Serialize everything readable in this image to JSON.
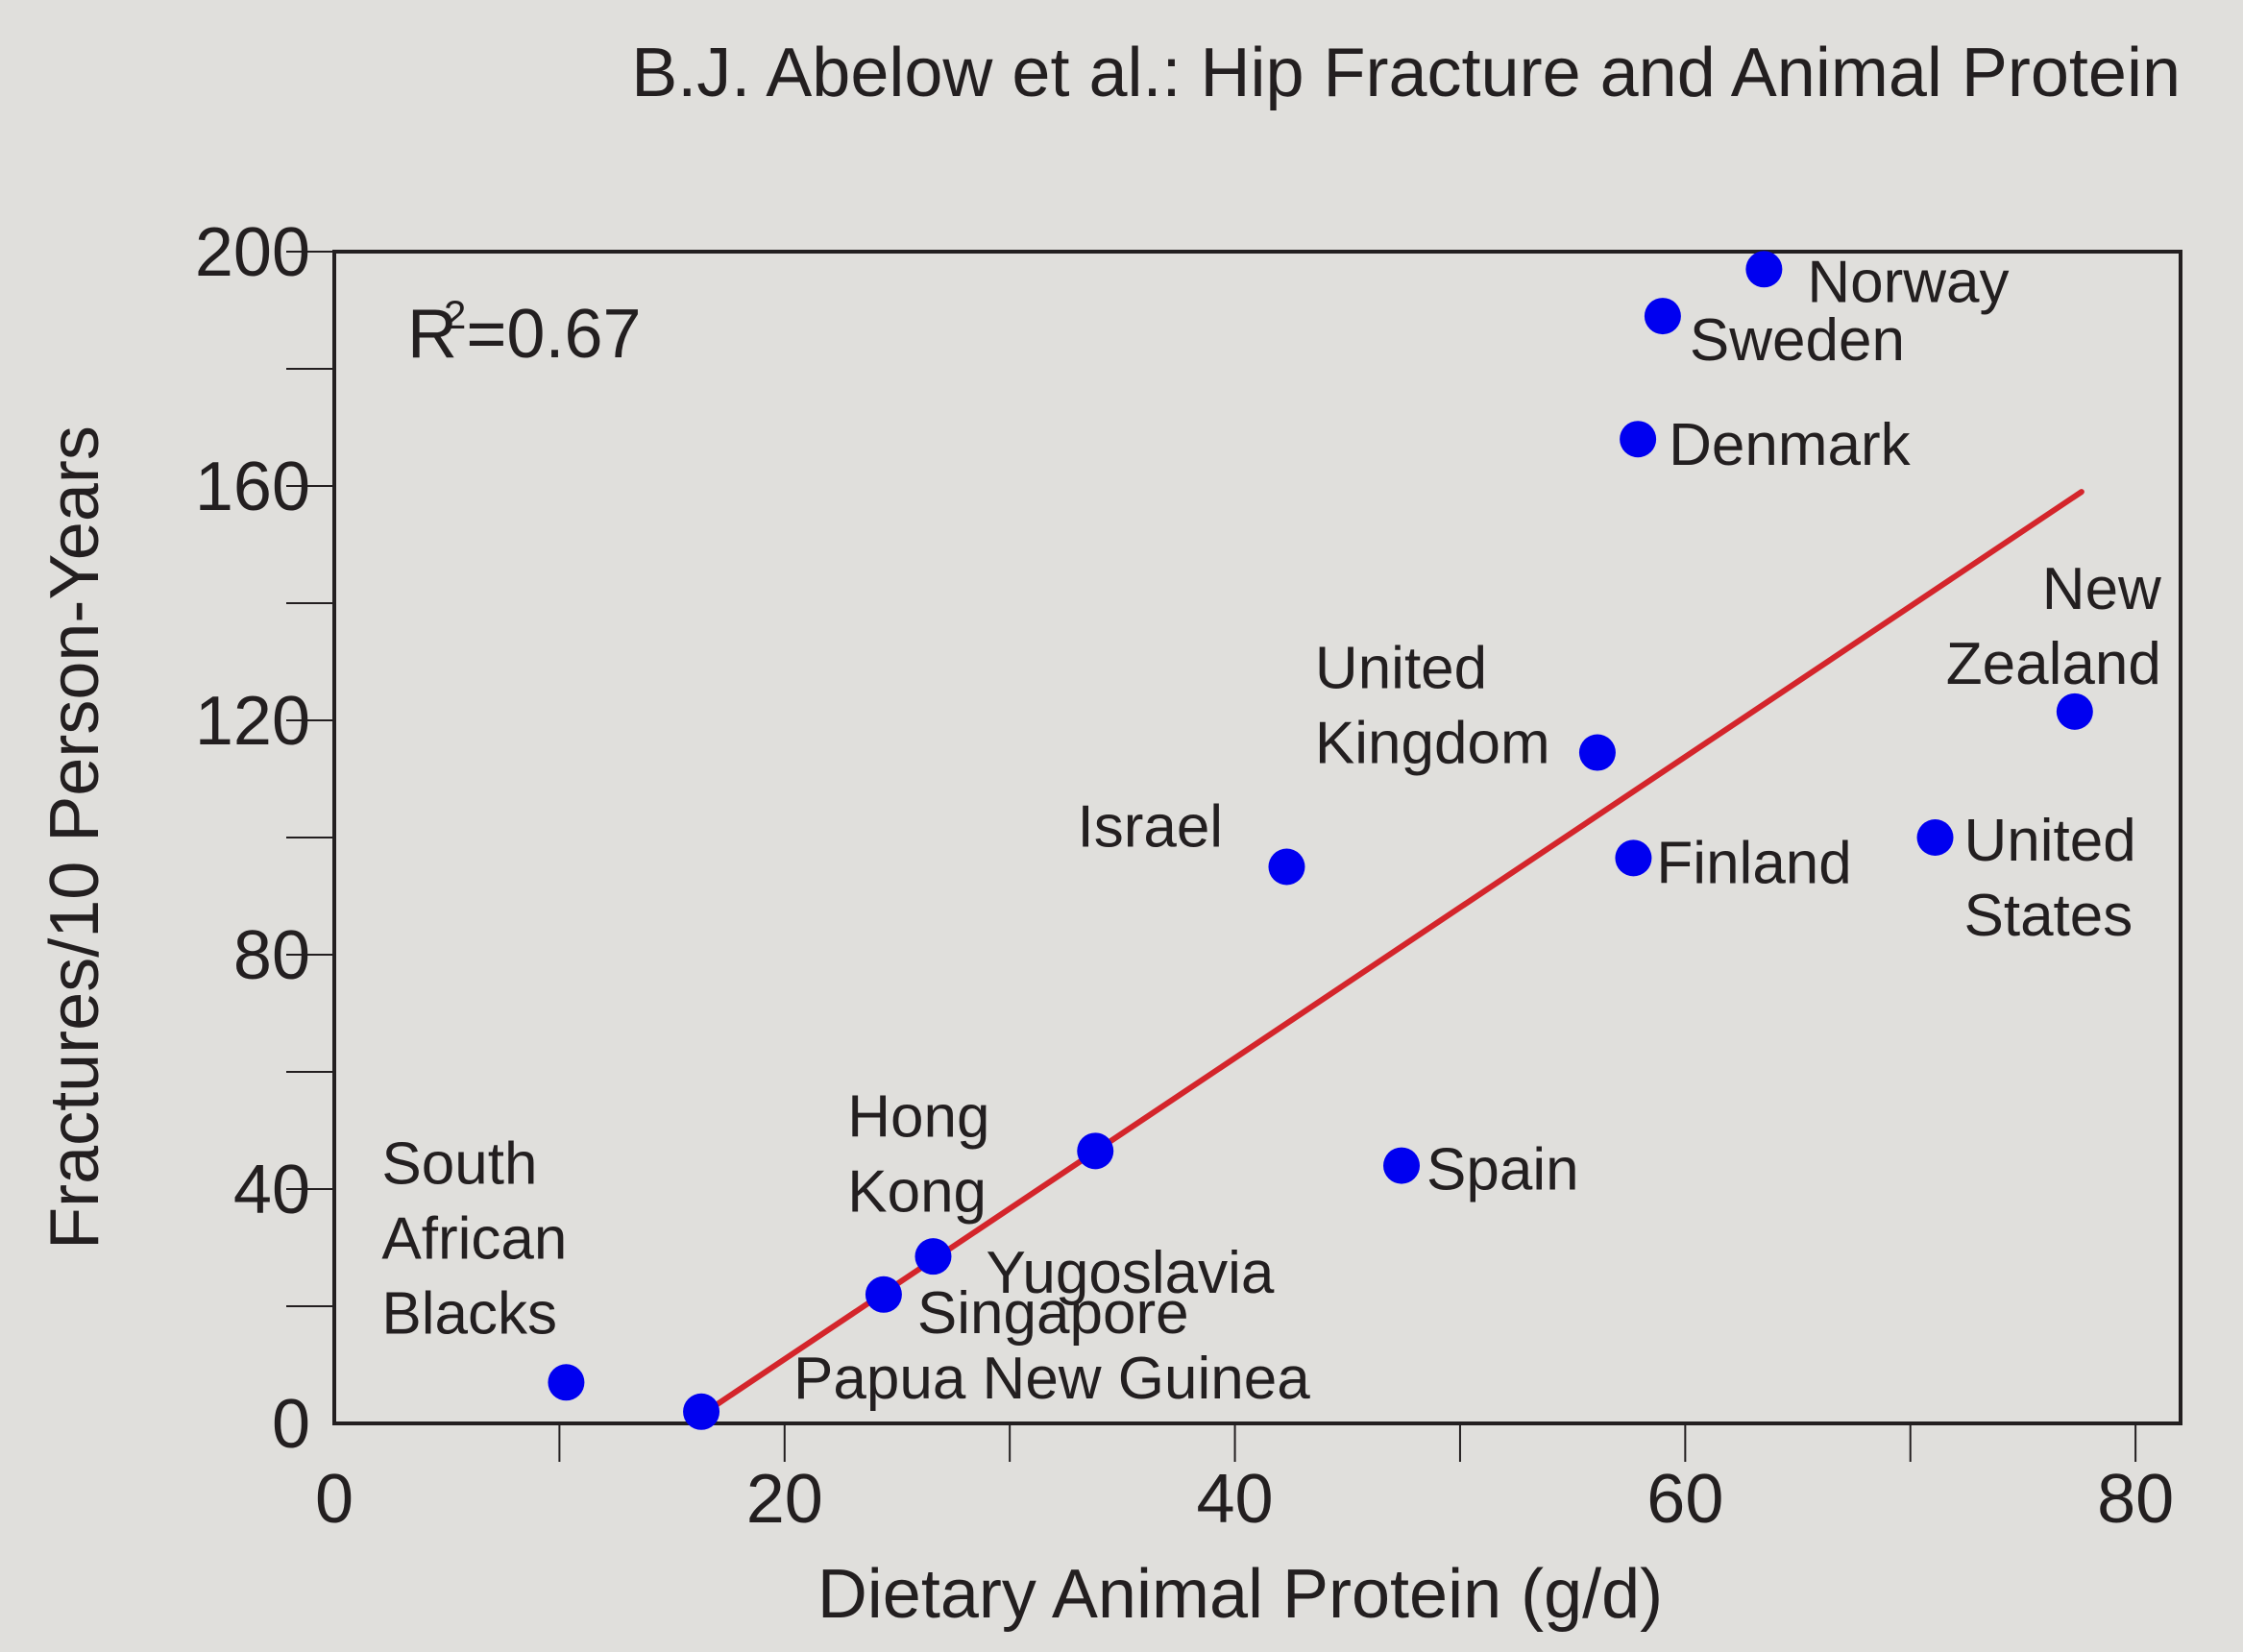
{
  "chart_data": {
    "type": "scatter",
    "title": "B.J. Abelow et al.: Hip Fracture and Animal Protein",
    "xlabel": "Dietary Animal Protein (g/d)",
    "ylabel": "Fractures/10 Person-Years",
    "xlim": [
      0,
      82
    ],
    "ylim": [
      0,
      200
    ],
    "x_ticks": [
      0,
      20,
      40,
      60,
      80
    ],
    "y_ticks": [
      0,
      40,
      80,
      120,
      160,
      200
    ],
    "x_minor_ticks": [
      10,
      30,
      50,
      70
    ],
    "y_minor_ticks": [
      20,
      60,
      100,
      140,
      180
    ],
    "grid": false,
    "annotation": {
      "r_label": "R",
      "r_exponent": "2",
      "r_value": "=0.67"
    },
    "colors": {
      "points": "#0000f0",
      "trendline": "#d4252b",
      "axis": "#231f20",
      "background": "#e0dfdc"
    },
    "points": [
      {
        "label": [
          "South",
          "African",
          "Blacks"
        ],
        "x": 10.3,
        "y": 7
      },
      {
        "label": [
          "Papua New Guinea"
        ],
        "x": 16.3,
        "y": 2
      },
      {
        "label": [
          "Singapore"
        ],
        "x": 24.4,
        "y": 22
      },
      {
        "label": [
          "Yugoslavia"
        ],
        "x": 26.6,
        "y": 28.5
      },
      {
        "label": [
          "Hong",
          "Kong"
        ],
        "x": 33.8,
        "y": 46.5
      },
      {
        "label": [
          "Israel"
        ],
        "x": 42.3,
        "y": 95
      },
      {
        "label": [
          "Spain"
        ],
        "x": 47.4,
        "y": 44
      },
      {
        "label": [
          "United",
          "Kingdom"
        ],
        "x": 56.1,
        "y": 114.5
      },
      {
        "label": [
          "Finland"
        ],
        "x": 57.7,
        "y": 96.5
      },
      {
        "label": [
          "Denmark"
        ],
        "x": 57.9,
        "y": 168
      },
      {
        "label": [
          "Sweden"
        ],
        "x": 59.0,
        "y": 189
      },
      {
        "label": [
          "Norway"
        ],
        "x": 63.5,
        "y": 197
      },
      {
        "label": [
          "United",
          "States"
        ],
        "x": 71.1,
        "y": 100
      },
      {
        "label": [
          "New",
          "Zealand"
        ],
        "x": 77.3,
        "y": 121.5
      }
    ],
    "trendline": {
      "x": [
        16.9,
        77.6
      ],
      "y": [
        3,
        159
      ]
    }
  }
}
